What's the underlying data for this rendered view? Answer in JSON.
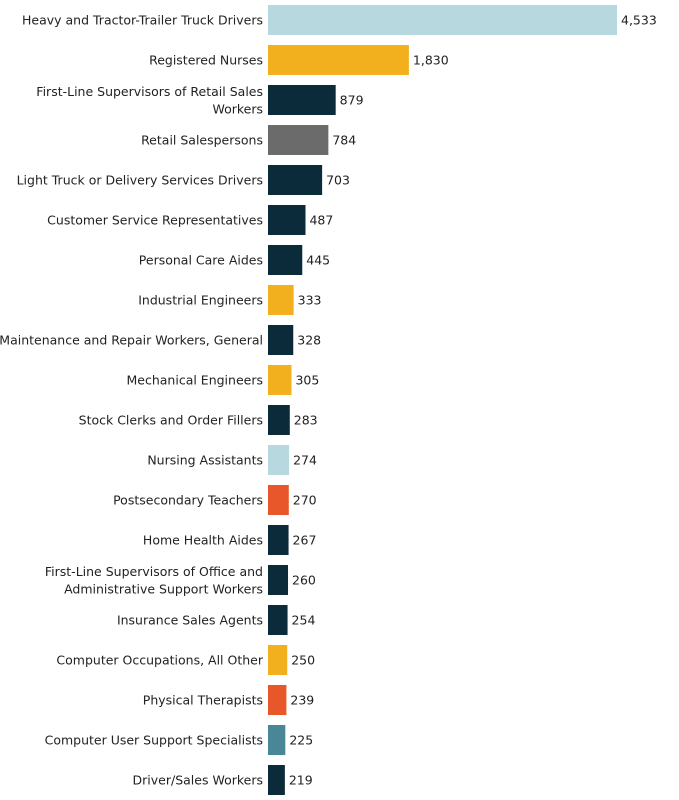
{
  "chart_data": {
    "type": "bar",
    "orientation": "horizontal",
    "grid": false,
    "legend": false,
    "xlim": [
      0,
      4533
    ],
    "categories": [
      "Heavy and Tractor-Trailer Truck Drivers",
      "Registered Nurses",
      "First-Line Supervisors of Retail Sales Workers",
      "Retail Salespersons",
      "Light Truck or Delivery Services Drivers",
      "Customer Service Representatives",
      "Personal Care Aides",
      "Industrial Engineers",
      "Maintenance and Repair Workers, General",
      "Mechanical Engineers",
      "Stock Clerks and Order Fillers",
      "Nursing Assistants",
      "Postsecondary Teachers",
      "Home Health Aides",
      "First-Line Supervisors of Office and Administrative Support Workers",
      "Insurance Sales Agents",
      "Computer Occupations, All Other",
      "Physical Therapists",
      "Computer User Support Specialists",
      "Driver/Sales Workers"
    ],
    "label_lines": [
      [
        "Heavy and Tractor-Trailer Truck Drivers"
      ],
      [
        "Registered Nurses"
      ],
      [
        "First-Line Supervisors of Retail Sales",
        "Workers"
      ],
      [
        "Retail Salespersons"
      ],
      [
        "Light Truck or Delivery Services Drivers"
      ],
      [
        "Customer Service Representatives"
      ],
      [
        "Personal Care Aides"
      ],
      [
        "Industrial Engineers"
      ],
      [
        "Maintenance and Repair Workers, General"
      ],
      [
        "Mechanical Engineers"
      ],
      [
        "Stock Clerks and Order Fillers"
      ],
      [
        "Nursing Assistants"
      ],
      [
        "Postsecondary Teachers"
      ],
      [
        "Home Health Aides"
      ],
      [
        "First-Line Supervisors of Office and",
        "Administrative Support Workers"
      ],
      [
        "Insurance Sales Agents"
      ],
      [
        "Computer Occupations, All Other"
      ],
      [
        "Physical Therapists"
      ],
      [
        "Computer User Support Specialists"
      ],
      [
        "Driver/Sales Workers"
      ]
    ],
    "values": [
      4533,
      1830,
      879,
      784,
      703,
      487,
      445,
      333,
      328,
      305,
      283,
      274,
      270,
      267,
      260,
      254,
      250,
      239,
      225,
      219
    ],
    "value_labels": [
      "4,533",
      "1,830",
      "879",
      "784",
      "703",
      "487",
      "445",
      "333",
      "328",
      "305",
      "283",
      "274",
      "270",
      "267",
      "260",
      "254",
      "250",
      "239",
      "225",
      "219"
    ],
    "colors": [
      "#b8d8e0",
      "#f2b01e",
      "#0b2a3a",
      "#6b6b6b",
      "#0b2a3a",
      "#0b2a3a",
      "#0b2a3a",
      "#f2b01e",
      "#0b2a3a",
      "#f2b01e",
      "#0b2a3a",
      "#b8d8e0",
      "#e8572a",
      "#0b2a3a",
      "#0b2a3a",
      "#0b2a3a",
      "#f2b01e",
      "#e8572a",
      "#4a8796",
      "#0b2a3a"
    ]
  }
}
